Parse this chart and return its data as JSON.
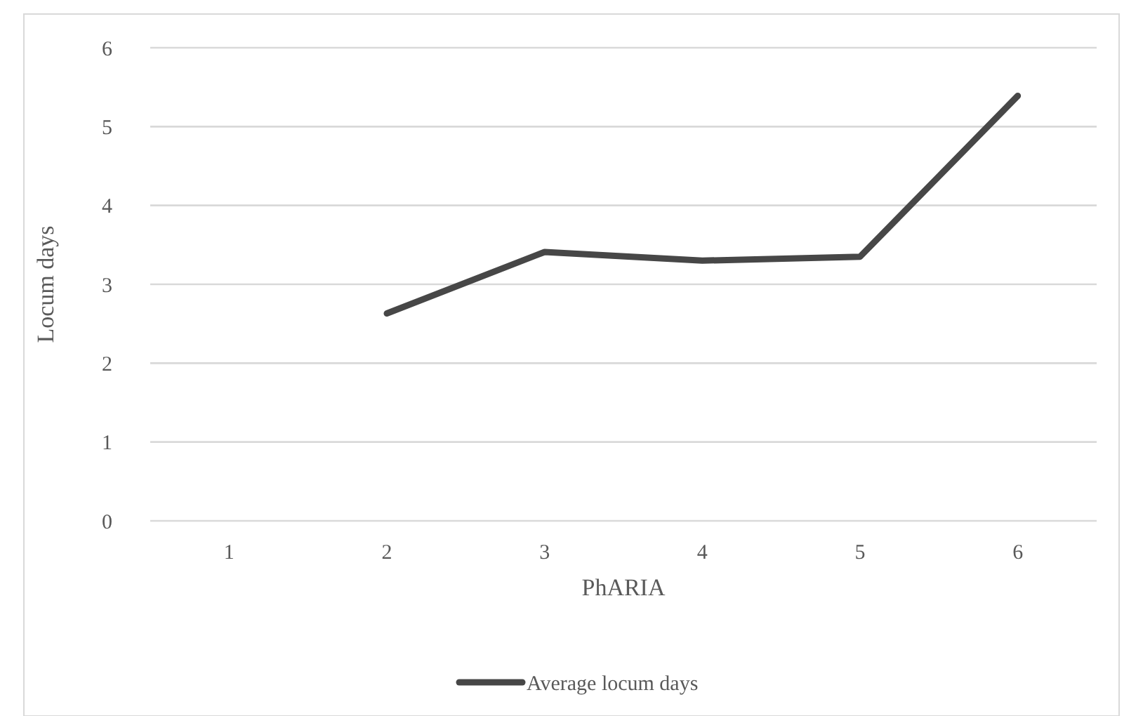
{
  "chart_data": {
    "type": "line",
    "xlabel": "PhARIA",
    "ylabel": "Locum days",
    "categories": [
      "1",
      "2",
      "3",
      "4",
      "5",
      "6"
    ],
    "series": [
      {
        "name": "Average locum days",
        "color": "#474747",
        "values": [
          null,
          2.63,
          3.41,
          3.3,
          3.35,
          5.39
        ]
      }
    ],
    "ylim": [
      0,
      6
    ],
    "yticks": [
      0,
      1,
      2,
      3,
      4,
      5,
      6
    ],
    "grid": "y",
    "legend": "bottom",
    "marker": "none",
    "line_style": "solid"
  }
}
